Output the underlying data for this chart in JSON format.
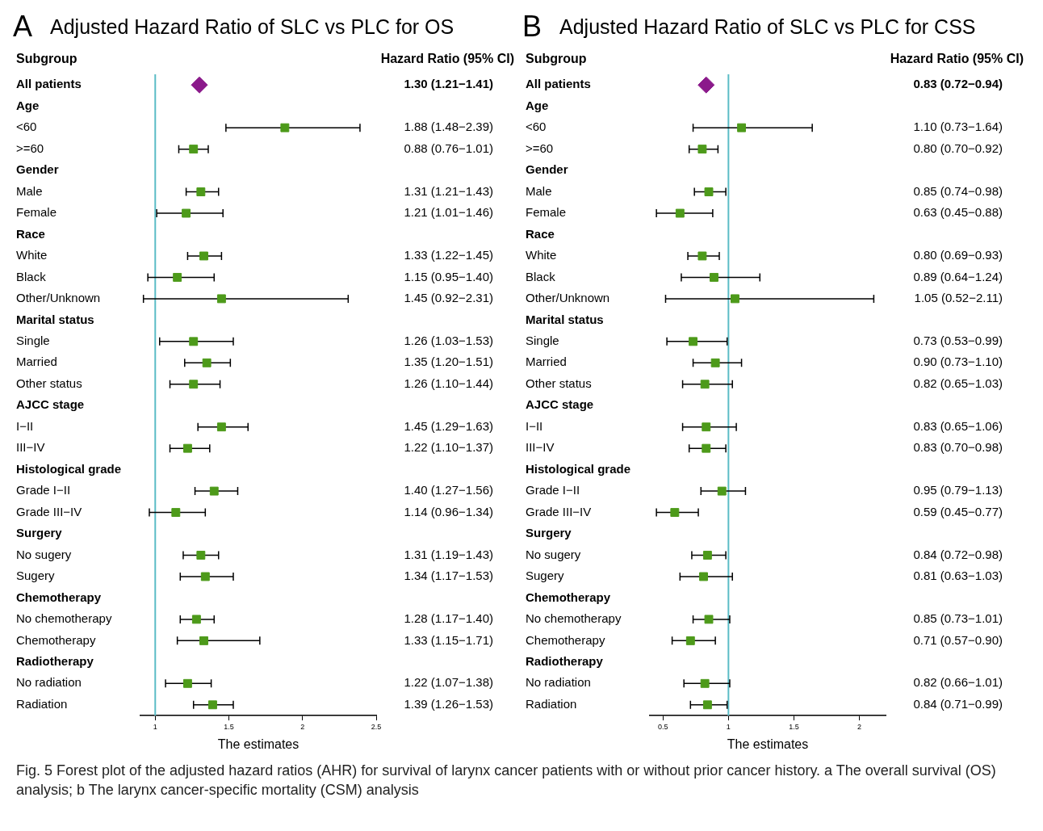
{
  "chart_data": [
    {
      "type": "scatter",
      "title": "Adjusted Hazard Ratio of SLC vs PLC for OS",
      "ylabel": "Subgroup",
      "y2label": "Hazard Ratio (95% CI)",
      "xlabel": "The estimates",
      "orientation": "horizontal",
      "annotations": [
        "A",
        "1.30 (1.21−1.41)",
        "Fig. 5 Forest plot of the adjusted hazard ratios (AHR) for survival of larynx cancer patients with or without prior cancer history. a The overall survival (OS) analysis; b The larynx cancer-specific mortality (CSM) analysis"
      ],
      "categories": [
        "All patients",
        "Age",
        "<60",
        ">=60",
        "Gender",
        "Male",
        "Female",
        "Race",
        "White",
        "Black",
        "Other/Unknown",
        "Marital status",
        "Single",
        "Married",
        "Other status",
        "AJCC stage",
        "I−II",
        "III−IV",
        "Histological grade",
        "Grade I−II",
        "Grade III−IV",
        "Surgery",
        "No sugery",
        "Sugery",
        "Chemotherapy",
        "No chemotherapy",
        "Chemotherapy",
        "Radiotherapy",
        "No radiation",
        "Radiation"
      ],
      "xlim": [
        0.9,
        2.5
      ],
      "xticks": [
        1,
        1.5,
        2,
        2.5
      ],
      "grid": false,
      "legend": false,
      "ref_lines": [
        {
          "axis": "x",
          "value": 1,
          "color": "#5bbcc6"
        }
      ],
      "series": [
        {
          "color": "#8b1a8b",
          "marker": "diamond",
          "values": [
            1.3,
            null,
            null,
            null,
            null,
            null,
            null,
            null,
            null,
            null,
            null,
            null,
            null,
            null,
            null,
            null,
            null,
            null,
            null,
            null,
            null,
            null,
            null,
            null,
            null,
            null,
            null,
            null,
            null,
            null
          ]
        },
        {
          "color": "#4d9a1a",
          "marker": "square",
          "values": [
            null,
            null,
            1.88,
            1.26,
            null,
            1.31,
            1.21,
            null,
            1.33,
            1.15,
            1.45,
            null,
            1.26,
            1.35,
            1.26,
            null,
            1.45,
            1.22,
            null,
            1.4,
            1.14,
            null,
            1.31,
            1.34,
            null,
            1.28,
            1.33,
            null,
            1.22,
            1.39
          ],
          "errors": [
            null,
            null,
            [
              1.48,
              2.39
            ],
            [
              1.16,
              1.36
            ],
            null,
            [
              1.21,
              1.43
            ],
            [
              1.01,
              1.46
            ],
            null,
            [
              1.22,
              1.45
            ],
            [
              0.95,
              1.4
            ],
            [
              0.92,
              2.31
            ],
            null,
            [
              1.03,
              1.53
            ],
            [
              1.2,
              1.51
            ],
            [
              1.1,
              1.44
            ],
            null,
            [
              1.29,
              1.63
            ],
            [
              1.1,
              1.37
            ],
            null,
            [
              1.27,
              1.56
            ],
            [
              0.96,
              1.34
            ],
            null,
            [
              1.19,
              1.43
            ],
            [
              1.17,
              1.53
            ],
            null,
            [
              1.17,
              1.4
            ],
            [
              1.15,
              1.71
            ],
            null,
            [
              1.07,
              1.38
            ],
            [
              1.26,
              1.53
            ]
          ],
          "value_labels": [
            null,
            null,
            "1.88 (1.48−2.39)",
            "0.88 (0.76−1.01)",
            null,
            "1.31 (1.21−1.43)",
            "1.21 (1.01−1.46)",
            null,
            "1.33 (1.22−1.45)",
            "1.15 (0.95−1.40)",
            "1.45 (0.92−2.31)",
            null,
            "1.26 (1.03−1.53)",
            "1.35 (1.20−1.51)",
            "1.26 (1.10−1.44)",
            null,
            "1.45 (1.29−1.63)",
            "1.22 (1.10−1.37)",
            null,
            "1.40 (1.27−1.56)",
            "1.14 (0.96−1.34)",
            null,
            "1.31 (1.19−1.43)",
            "1.34 (1.17−1.53)",
            null,
            "1.28 (1.17−1.40)",
            "1.33 (1.15−1.71)",
            null,
            "1.22 (1.07−1.38)",
            "1.39 (1.26−1.53)"
          ]
        }
      ]
    },
    {
      "type": "scatter",
      "title": "Adjusted Hazard Ratio of SLC vs PLC for CSS",
      "ylabel": "Subgroup",
      "y2label": "Hazard Ratio (95% CI)",
      "xlabel": "The estimates",
      "orientation": "horizontal",
      "annotations": [
        "B",
        "0.83 (0.72−0.94)"
      ],
      "categories": [
        "All patients",
        "Age",
        "<60",
        ">=60",
        "Gender",
        "Male",
        "Female",
        "Race",
        "White",
        "Black",
        "Other/Unknown",
        "Marital status",
        "Single",
        "Married",
        "Other status",
        "AJCC stage",
        "I−II",
        "III−IV",
        "Histological grade",
        "Grade I−II",
        "Grade III−IV",
        "Surgery",
        "No sugery",
        "Sugery",
        "Chemotherapy",
        "No chemotherapy",
        "Chemotherapy",
        "Radiotherapy",
        "No radiation",
        "Radiation"
      ],
      "xlim": [
        0.4,
        2.2
      ],
      "xticks": [
        0.5,
        1,
        1.5,
        2
      ],
      "grid": false,
      "legend": false,
      "ref_lines": [
        {
          "axis": "x",
          "value": 1,
          "color": "#5bbcc6"
        }
      ],
      "series": [
        {
          "color": "#8b1a8b",
          "marker": "diamond",
          "values": [
            0.83,
            null,
            null,
            null,
            null,
            null,
            null,
            null,
            null,
            null,
            null,
            null,
            null,
            null,
            null,
            null,
            null,
            null,
            null,
            null,
            null,
            null,
            null,
            null,
            null,
            null,
            null,
            null,
            null,
            null
          ]
        },
        {
          "color": "#4d9a1a",
          "marker": "square",
          "values": [
            null,
            null,
            1.1,
            0.8,
            null,
            0.85,
            0.63,
            null,
            0.8,
            0.89,
            1.05,
            null,
            0.73,
            0.9,
            0.82,
            null,
            0.83,
            0.83,
            null,
            0.95,
            0.59,
            null,
            0.84,
            0.81,
            null,
            0.85,
            0.71,
            null,
            0.82,
            0.84
          ],
          "errors": [
            null,
            null,
            [
              0.73,
              1.64
            ],
            [
              0.7,
              0.92
            ],
            null,
            [
              0.74,
              0.98
            ],
            [
              0.45,
              0.88
            ],
            null,
            [
              0.69,
              0.93
            ],
            [
              0.64,
              1.24
            ],
            [
              0.52,
              2.11
            ],
            null,
            [
              0.53,
              0.99
            ],
            [
              0.73,
              1.1
            ],
            [
              0.65,
              1.03
            ],
            null,
            [
              0.65,
              1.06
            ],
            [
              0.7,
              0.98
            ],
            null,
            [
              0.79,
              1.13
            ],
            [
              0.45,
              0.77
            ],
            null,
            [
              0.72,
              0.98
            ],
            [
              0.63,
              1.03
            ],
            null,
            [
              0.73,
              1.01
            ],
            [
              0.57,
              0.9
            ],
            null,
            [
              0.66,
              1.01
            ],
            [
              0.71,
              0.99
            ]
          ],
          "value_labels": [
            null,
            null,
            "1.10 (0.73−1.64)",
            "0.80 (0.70−0.92)",
            null,
            "0.85 (0.74−0.98)",
            "0.63 (0.45−0.88)",
            null,
            "0.80 (0.69−0.93)",
            "0.89 (0.64−1.24)",
            "1.05 (0.52−2.11)",
            null,
            "0.73 (0.53−0.99)",
            "0.90 (0.73−1.10)",
            "0.82 (0.65−1.03)",
            null,
            "0.83 (0.65−1.06)",
            "0.83 (0.70−0.98)",
            null,
            "0.95 (0.79−1.13)",
            "0.59 (0.45−0.77)",
            null,
            "0.84 (0.72−0.98)",
            "0.81 (0.63−1.03)",
            null,
            "0.85 (0.73−1.01)",
            "0.71 (0.57−0.90)",
            null,
            "0.82 (0.66−1.01)",
            "0.84 (0.71−0.99)"
          ]
        }
      ]
    }
  ]
}
